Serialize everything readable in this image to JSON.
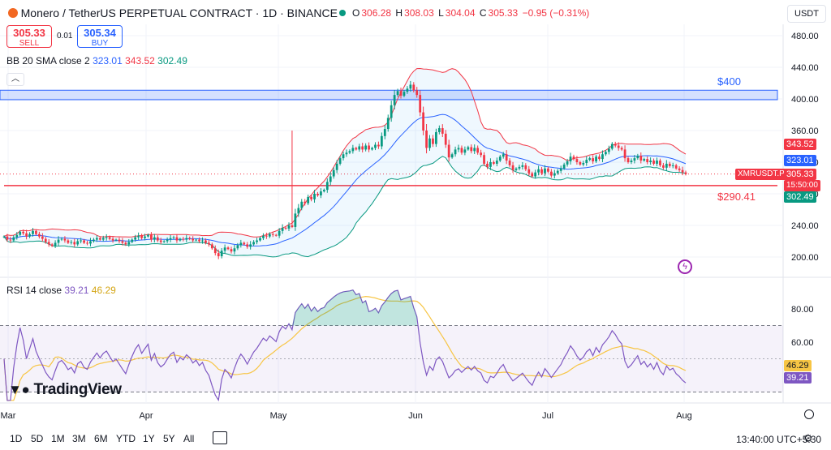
{
  "header": {
    "title": "Monero / TetherUS PERPETUAL CONTRACT · 1D · BINANCE",
    "ohlc": {
      "o_label": "O",
      "o": "306.28",
      "h_label": "H",
      "h": "308.03",
      "l_label": "L",
      "l": "304.04",
      "c_label": "C",
      "c": "305.33",
      "change": "−0.95 (−0.31%)"
    },
    "sell_price": "305.33",
    "sell_label": "SELL",
    "spread": "0.01",
    "buy_price": "305.34",
    "buy_label": "BUY",
    "currency": "USDT"
  },
  "indicators": {
    "bb_label": "BB 20 SMA close 2",
    "bb_basis": "323.01",
    "bb_upper": "343.52",
    "bb_lower": "302.49",
    "rsi_label": "RSI 14 close",
    "rsi_value": "39.21",
    "rsi_ma": "46.29"
  },
  "annotations": {
    "level_400": "$400",
    "level_290": "$290.41"
  },
  "price_tags": {
    "symbol": "XMRUSDT.P",
    "last": "305.33",
    "countdown": "15:50:00",
    "upper": "343.52",
    "basis": "323.01",
    "lower": "302.49",
    "rsi_ma": "46.29",
    "rsi": "39.21"
  },
  "timeframes": [
    "1D",
    "5D",
    "1M",
    "3M",
    "6M",
    "YTD",
    "1Y",
    "5Y",
    "All"
  ],
  "clock": "13:40:00 UTC+5:30",
  "logo": "TradingView",
  "colors": {
    "up": "#089981",
    "down": "#f23645",
    "bb_basis": "#2962ff",
    "bb_upper": "#f23645",
    "bb_lower": "#089981",
    "rsi": "#7e57c2",
    "rsi_ma": "#f7c544",
    "zone": "#2962ff",
    "support": "#f23645"
  },
  "chart_data": [
    {
      "type": "candlestick",
      "title": "Monero / TetherUS PERPETUAL CONTRACT · 1D · BINANCE",
      "x_ticks": [
        "Mar",
        "Apr",
        "May",
        "Jun",
        "Jul",
        "Aug"
      ],
      "y_ticks": [
        200,
        240,
        280,
        320,
        360,
        400,
        440,
        480
      ],
      "ylim": [
        175,
        500
      ],
      "grid": true,
      "horizontal_zones": [
        {
          "label": "$400",
          "from": 399,
          "to": 411
        }
      ],
      "horizontal_lines": [
        {
          "label": "$290.41",
          "value": 290.41
        }
      ],
      "closes": [
        226,
        222,
        221,
        225,
        228,
        232,
        230,
        226,
        229,
        233,
        229,
        226,
        223,
        219,
        216,
        214,
        218,
        222,
        223,
        221,
        218,
        219,
        216,
        220,
        221,
        218,
        217,
        220,
        222,
        224,
        222,
        224,
        225,
        223,
        221,
        222,
        220,
        218,
        216,
        219,
        222,
        225,
        227,
        224,
        226,
        228,
        222,
        225,
        221,
        219,
        220,
        222,
        224,
        225,
        221,
        223,
        222,
        224,
        223,
        221,
        222,
        220,
        221,
        218,
        216,
        211,
        205,
        201,
        208,
        212,
        210,
        207,
        211,
        215,
        218,
        216,
        213,
        216,
        219,
        221,
        224,
        227,
        226,
        229,
        228,
        227,
        233,
        237,
        236,
        240,
        238,
        255,
        262,
        270,
        268,
        276,
        273,
        280,
        278,
        283,
        285,
        295,
        302,
        310,
        318,
        325,
        330,
        332,
        334,
        338,
        336,
        340,
        336,
        341,
        336,
        338,
        342,
        340,
        353,
        362,
        376,
        392,
        405,
        410,
        404,
        409,
        413,
        418,
        411,
        405,
        383,
        360,
        338,
        350,
        343,
        358,
        363,
        356,
        342,
        326,
        330,
        336,
        338,
        332,
        336,
        339,
        334,
        338,
        332,
        329,
        318,
        314,
        320,
        318,
        322,
        327,
        330,
        322,
        316,
        310,
        312,
        314,
        316,
        311,
        306,
        302,
        307,
        311,
        306,
        312,
        308,
        303,
        306,
        309,
        312,
        317,
        321,
        327,
        324,
        320,
        317,
        319,
        323,
        325,
        321,
        327,
        324,
        330,
        333,
        337,
        343,
        341,
        338,
        336,
        325,
        320,
        322,
        325,
        328,
        322,
        324,
        320,
        322,
        318,
        322,
        316,
        313,
        318,
        315,
        316,
        312,
        310,
        307,
        305
      ],
      "bb": {
        "period": 20,
        "mult": 2,
        "last_basis": 323.01,
        "last_upper": 343.52,
        "last_lower": 302.49
      }
    },
    {
      "type": "line",
      "title": "RSI 14 close",
      "y_ticks": [
        60,
        80
      ],
      "ylim": [
        30,
        100
      ],
      "bands": [
        70,
        30
      ],
      "midline": 50,
      "series": [
        {
          "name": "RSI 14 close",
          "last": 39.21
        },
        {
          "name": "RSI-based MA",
          "last": 46.29
        }
      ]
    }
  ]
}
